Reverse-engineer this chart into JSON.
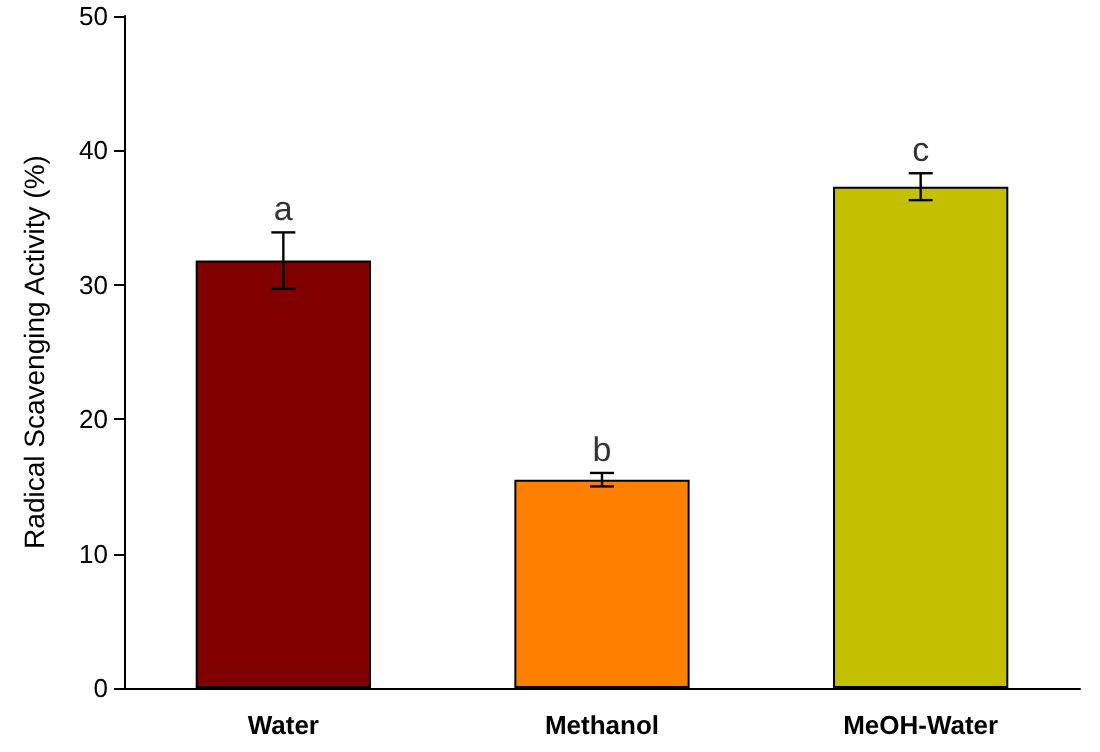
{
  "chart_data": {
    "type": "bar",
    "ylabel": "Radical Scavenging Activity (%)",
    "categories": [
      "Water",
      "Methanol",
      "MeOH-Water"
    ],
    "values": [
      31.8,
      15.5,
      37.3
    ],
    "colors": [
      "#800000",
      "#ff8000",
      "#c4c000"
    ],
    "errors": [
      2.1,
      0.5,
      1.0
    ],
    "ylim": [
      0,
      50
    ],
    "yticks": [
      0,
      10,
      20,
      30,
      40,
      50
    ],
    "grid": false,
    "annotations": [
      "a",
      "b",
      "c"
    ]
  }
}
